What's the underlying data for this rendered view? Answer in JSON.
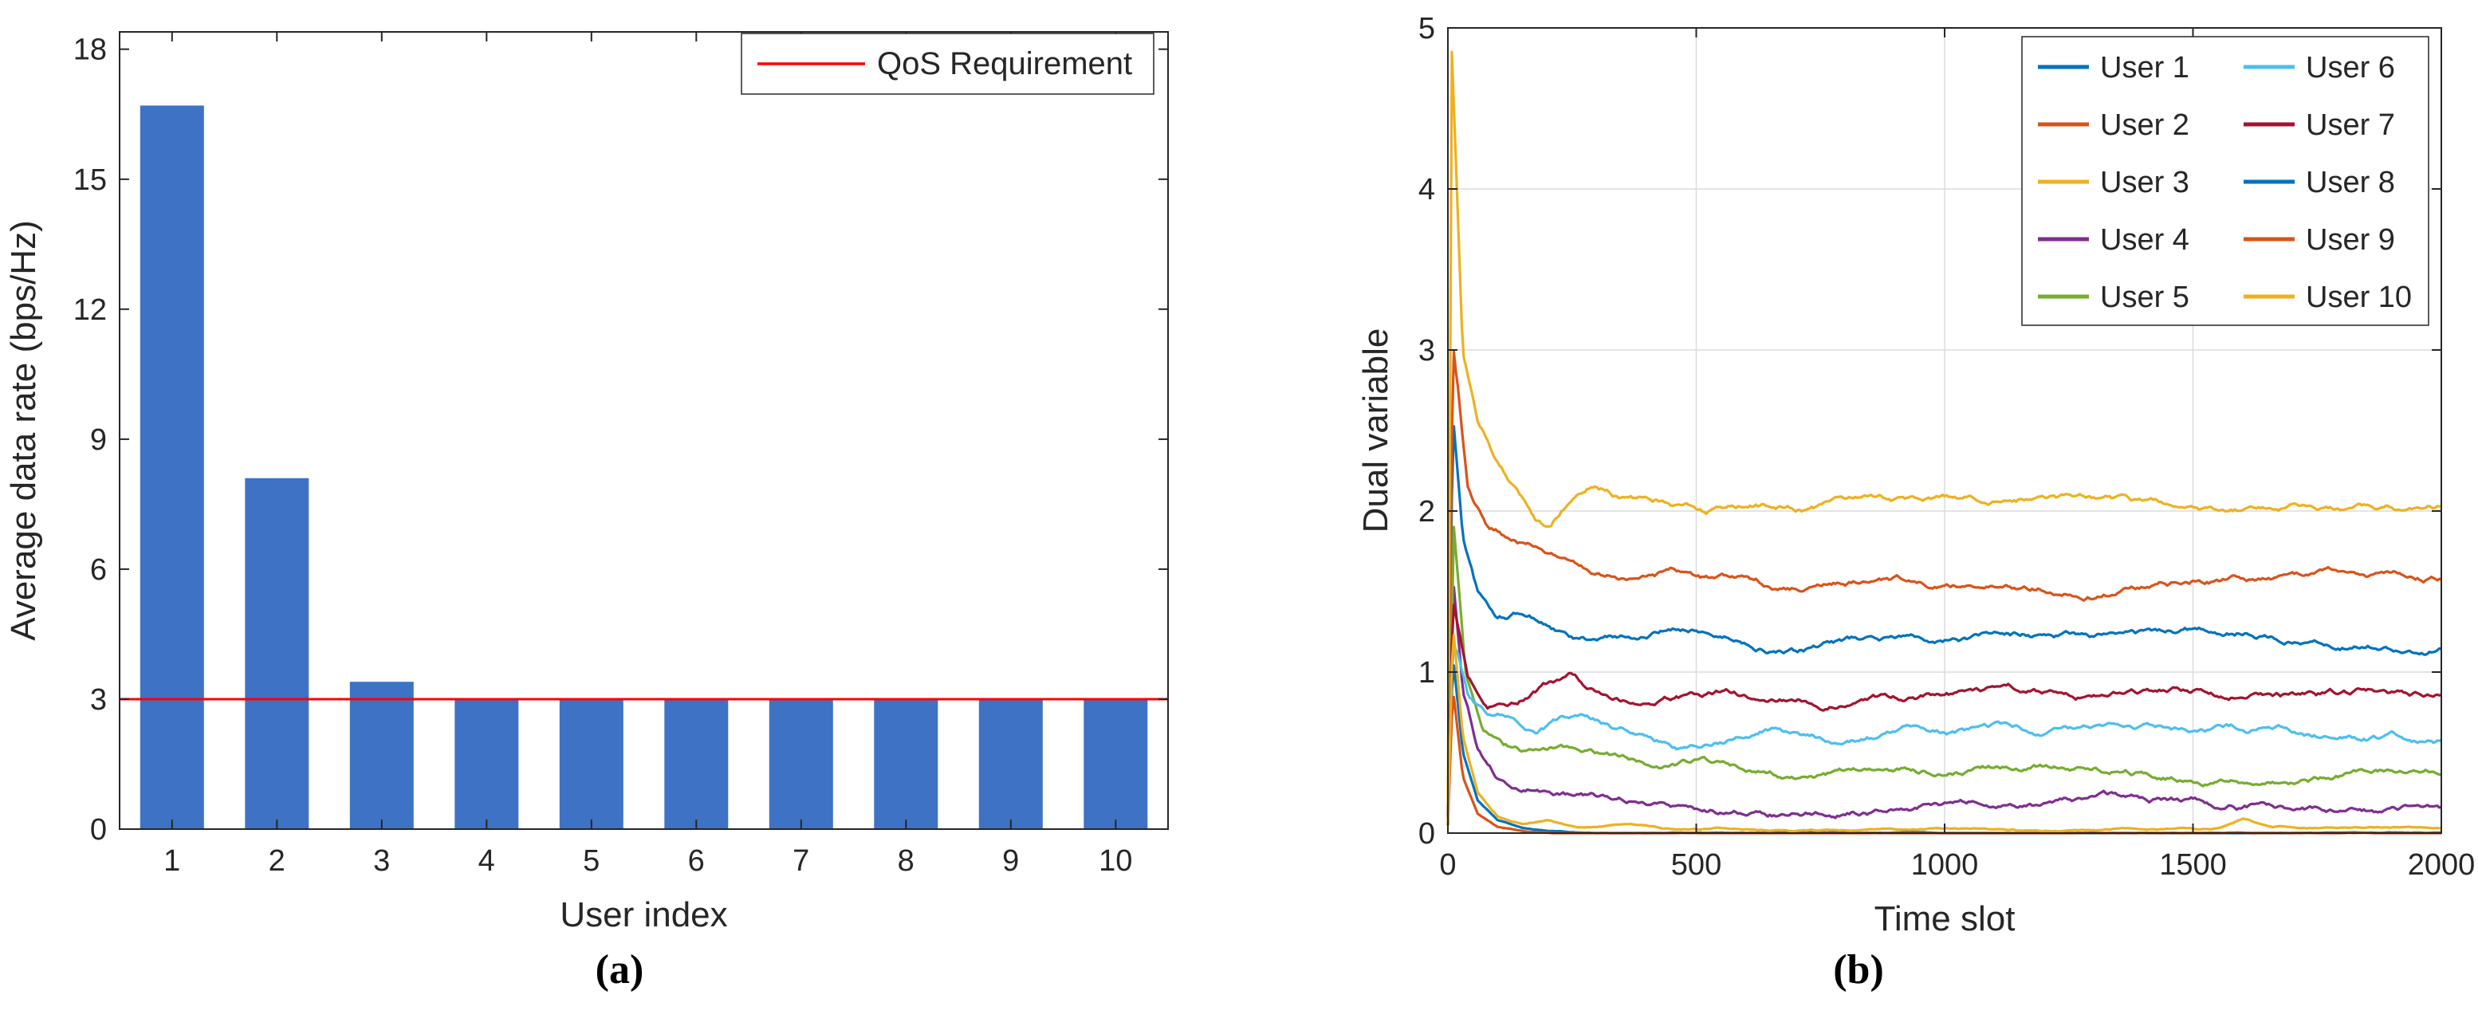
{
  "figure": {
    "caption_a": "(a)",
    "caption_b": "(b)"
  },
  "colors": {
    "axis": "#262626",
    "grid": "#dbdbdb",
    "background": "#ffffff"
  },
  "chart_data": [
    {
      "id": "bar_chart",
      "type": "bar",
      "title": "",
      "xlabel": "User index",
      "ylabel": "Average data rate (bps/Hz)",
      "categories": [
        "1",
        "2",
        "3",
        "4",
        "5",
        "6",
        "7",
        "8",
        "9",
        "10"
      ],
      "values": [
        16.7,
        8.1,
        3.4,
        3.0,
        3.0,
        3.0,
        3.0,
        3.0,
        3.0,
        3.0
      ],
      "bar_color": "#3e72c4",
      "ylim": [
        0,
        18
      ],
      "yticks": [
        0,
        3,
        6,
        9,
        12,
        15,
        18
      ],
      "grid": false,
      "legend_position": "top-right",
      "reference_line": {
        "y": 3,
        "color": "#ff0000",
        "label": "QoS Requirement"
      }
    },
    {
      "id": "line_chart",
      "type": "line",
      "title": "",
      "xlabel": "Time slot",
      "ylabel": "Dual variable",
      "xlim": [
        0,
        2000
      ],
      "ylim": [
        0,
        5
      ],
      "xticks": [
        0,
        500,
        1000,
        1500,
        2000
      ],
      "yticks": [
        0,
        1,
        2,
        3,
        4,
        5
      ],
      "grid": true,
      "legend_position": "top-right",
      "legend_columns": 2,
      "series": [
        {
          "name": "User 1",
          "color": "#0072BD",
          "noise": 1,
          "keypoints": [
            [
              0,
              0.1
            ],
            [
              10,
              2.6
            ],
            [
              30,
              1.85
            ],
            [
              60,
              1.5
            ],
            [
              100,
              1.32
            ],
            [
              150,
              1.36
            ],
            [
              200,
              1.3
            ],
            [
              250,
              1.2
            ],
            [
              300,
              1.18
            ],
            [
              400,
              1.22
            ],
            [
              500,
              1.27
            ],
            [
              600,
              1.2
            ],
            [
              700,
              1.13
            ],
            [
              800,
              1.18
            ],
            [
              1000,
              1.2
            ],
            [
              1200,
              1.22
            ],
            [
              1400,
              1.2
            ],
            [
              1600,
              1.25
            ],
            [
              1800,
              1.22
            ],
            [
              2000,
              1.2
            ]
          ]
        },
        {
          "name": "User 2",
          "color": "#D95319",
          "noise": 1,
          "keypoints": [
            [
              0,
              0.1
            ],
            [
              10,
              3.05
            ],
            [
              40,
              2.1
            ],
            [
              80,
              1.86
            ],
            [
              130,
              1.8
            ],
            [
              180,
              1.74
            ],
            [
              230,
              1.66
            ],
            [
              290,
              1.6
            ],
            [
              360,
              1.56
            ],
            [
              450,
              1.6
            ],
            [
              560,
              1.54
            ],
            [
              660,
              1.5
            ],
            [
              760,
              1.53
            ],
            [
              900,
              1.56
            ],
            [
              1100,
              1.57
            ],
            [
              1300,
              1.55
            ],
            [
              1500,
              1.57
            ],
            [
              1700,
              1.6
            ],
            [
              1850,
              1.58
            ],
            [
              2000,
              1.6
            ]
          ]
        },
        {
          "name": "User 3",
          "color": "#EDB120",
          "noise": 1,
          "keypoints": [
            [
              0,
              0.1
            ],
            [
              8,
              4.85
            ],
            [
              30,
              3.0
            ],
            [
              60,
              2.55
            ],
            [
              100,
              2.3
            ],
            [
              140,
              2.1
            ],
            [
              175,
              1.92
            ],
            [
              205,
              1.86
            ],
            [
              245,
              2.06
            ],
            [
              285,
              2.15
            ],
            [
              335,
              2.1
            ],
            [
              420,
              2.07
            ],
            [
              520,
              2.0
            ],
            [
              620,
              2.05
            ],
            [
              720,
              2.02
            ],
            [
              820,
              2.05
            ],
            [
              1000,
              2.05
            ],
            [
              1200,
              2.07
            ],
            [
              1400,
              2.02
            ],
            [
              1600,
              2.0
            ],
            [
              1800,
              2.02
            ],
            [
              2000,
              2.02
            ]
          ]
        },
        {
          "name": "User 4",
          "color": "#7E2F8E",
          "noise": 1,
          "keypoints": [
            [
              0,
              0.05
            ],
            [
              10,
              1.6
            ],
            [
              30,
              0.9
            ],
            [
              60,
              0.55
            ],
            [
              100,
              0.36
            ],
            [
              150,
              0.3
            ],
            [
              200,
              0.28
            ],
            [
              300,
              0.22
            ],
            [
              400,
              0.18
            ],
            [
              500,
              0.15
            ],
            [
              700,
              0.14
            ],
            [
              900,
              0.16
            ],
            [
              1100,
              0.17
            ],
            [
              1300,
              0.2
            ],
            [
              1500,
              0.18
            ],
            [
              1700,
              0.16
            ],
            [
              2000,
              0.15
            ]
          ]
        },
        {
          "name": "User 5",
          "color": "#77AC30",
          "noise": 1,
          "keypoints": [
            [
              0,
              0.05
            ],
            [
              12,
              1.9
            ],
            [
              35,
              1.0
            ],
            [
              70,
              0.62
            ],
            [
              110,
              0.5
            ],
            [
              160,
              0.45
            ],
            [
              220,
              0.48
            ],
            [
              300,
              0.45
            ],
            [
              400,
              0.42
            ],
            [
              500,
              0.45
            ],
            [
              600,
              0.4
            ],
            [
              700,
              0.35
            ],
            [
              800,
              0.38
            ],
            [
              1000,
              0.38
            ],
            [
              1200,
              0.4
            ],
            [
              1400,
              0.38
            ],
            [
              1600,
              0.36
            ],
            [
              1800,
              0.38
            ],
            [
              2000,
              0.37
            ]
          ]
        },
        {
          "name": "User 6",
          "color": "#4DBEEE",
          "noise": 1,
          "keypoints": [
            [
              0,
              0.05
            ],
            [
              10,
              1.2
            ],
            [
              40,
              0.85
            ],
            [
              80,
              0.7
            ],
            [
              130,
              0.68
            ],
            [
              180,
              0.62
            ],
            [
              230,
              0.68
            ],
            [
              280,
              0.72
            ],
            [
              330,
              0.65
            ],
            [
              400,
              0.6
            ],
            [
              460,
              0.55
            ],
            [
              560,
              0.6
            ],
            [
              660,
              0.65
            ],
            [
              760,
              0.6
            ],
            [
              900,
              0.62
            ],
            [
              1100,
              0.63
            ],
            [
              1300,
              0.62
            ],
            [
              1500,
              0.6
            ],
            [
              1700,
              0.62
            ],
            [
              1850,
              0.6
            ],
            [
              2000,
              0.58
            ]
          ]
        },
        {
          "name": "User 7",
          "color": "#A2142F",
          "noise": 1,
          "keypoints": [
            [
              0,
              0.05
            ],
            [
              10,
              1.45
            ],
            [
              40,
              0.95
            ],
            [
              80,
              0.8
            ],
            [
              120,
              0.83
            ],
            [
              170,
              0.9
            ],
            [
              210,
              0.96
            ],
            [
              250,
              1.0
            ],
            [
              295,
              0.9
            ],
            [
              360,
              0.85
            ],
            [
              460,
              0.88
            ],
            [
              560,
              0.9
            ],
            [
              660,
              0.85
            ],
            [
              760,
              0.83
            ],
            [
              900,
              0.85
            ],
            [
              1100,
              0.86
            ],
            [
              1300,
              0.85
            ],
            [
              1500,
              0.88
            ],
            [
              1700,
              0.86
            ],
            [
              2000,
              0.85
            ]
          ]
        },
        {
          "name": "User 8",
          "color": "#0072BD",
          "noise": 0.1,
          "keypoints": [
            [
              0,
              0.05
            ],
            [
              10,
              1.1
            ],
            [
              30,
              0.5
            ],
            [
              60,
              0.2
            ],
            [
              100,
              0.08
            ],
            [
              150,
              0.03
            ],
            [
              200,
              0.01
            ],
            [
              300,
              0
            ],
            [
              2000,
              0
            ]
          ]
        },
        {
          "name": "User 9",
          "color": "#D95319",
          "noise": 0.1,
          "keypoints": [
            [
              0,
              0.05
            ],
            [
              10,
              0.9
            ],
            [
              30,
              0.35
            ],
            [
              60,
              0.12
            ],
            [
              100,
              0.04
            ],
            [
              160,
              0.01
            ],
            [
              260,
              0
            ],
            [
              2000,
              0
            ]
          ]
        },
        {
          "name": "User 10",
          "color": "#EDB120",
          "noise": 0.25,
          "keypoints": [
            [
              0,
              0.05
            ],
            [
              10,
              1.3
            ],
            [
              30,
              0.6
            ],
            [
              60,
              0.25
            ],
            [
              100,
              0.1
            ],
            [
              150,
              0.05
            ],
            [
              200,
              0.08
            ],
            [
              260,
              0.03
            ],
            [
              360,
              0.05
            ],
            [
              460,
              0.02
            ],
            [
              600,
              0.03
            ],
            [
              800,
              0.02
            ],
            [
              1000,
              0.03
            ],
            [
              1200,
              0.02
            ],
            [
              1550,
              0.03
            ],
            [
              1600,
              0.09
            ],
            [
              1660,
              0.03
            ],
            [
              1800,
              0.02
            ],
            [
              2000,
              0.03
            ]
          ]
        }
      ]
    }
  ]
}
